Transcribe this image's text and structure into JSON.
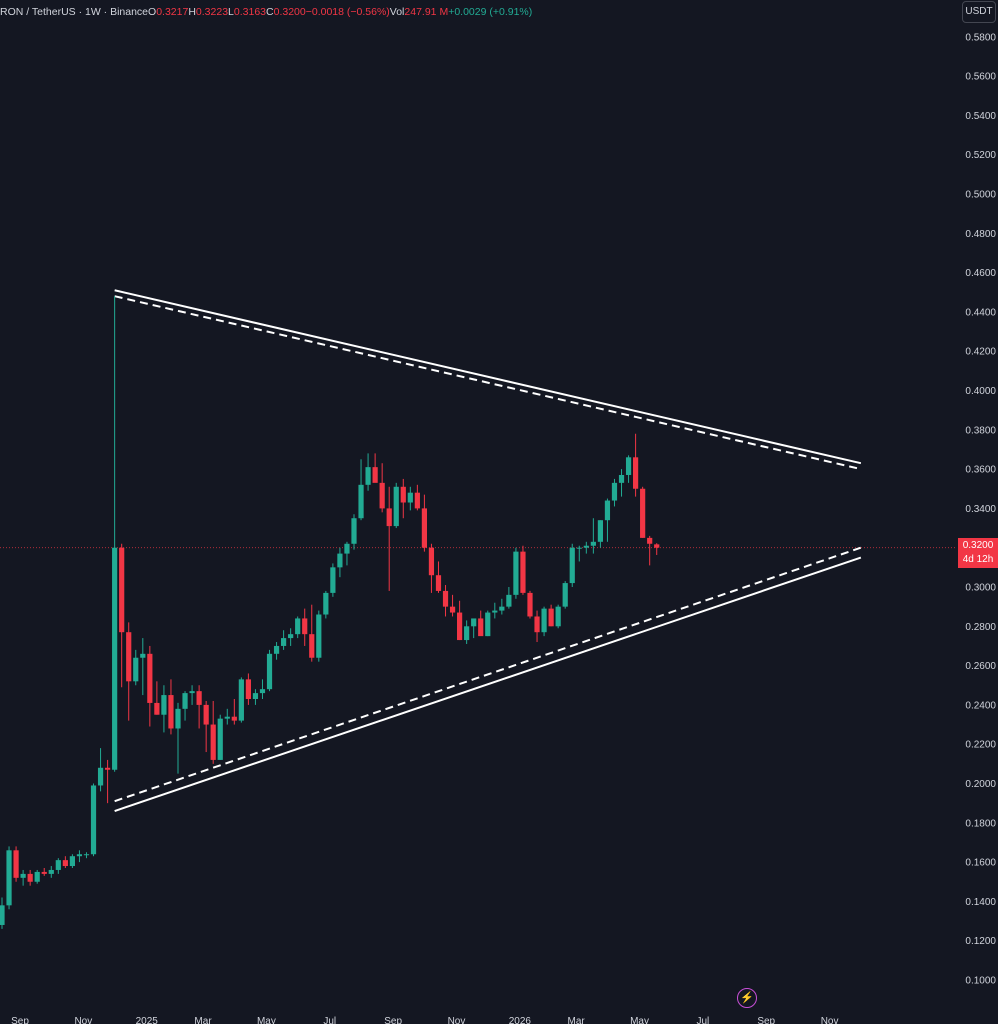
{
  "header": {
    "symbol": "RON / TetherUS · 1W · Binance",
    "o_label": "O",
    "o_value": "0.3217",
    "h_label": "H",
    "h_value": "0.3223",
    "l_label": "L",
    "l_value": "0.3163",
    "c_label": "C",
    "c_value": "0.3200",
    "change": "−0.0018 (−0.56%)",
    "vol_label": "Vol",
    "vol_value": "247.91 M",
    "vol_change": "+0.0029 (+0.91%)",
    "currency": "USDT"
  },
  "price_tag": {
    "price": "0.3200",
    "countdown": "4d 12h"
  },
  "colors": {
    "background": "#141722",
    "up": "#22ab94",
    "down": "#f23645",
    "text": "#d1d4dc",
    "trendline": "#ffffff"
  },
  "icons": {
    "bottom": "bolt-icon"
  },
  "chart_data": {
    "type": "candlestick",
    "title": "",
    "xlabel": "",
    "ylabel": "",
    "ylim": [
      0.095,
      0.59
    ],
    "grid": false,
    "y_ticks": [
      "0.1000",
      "0.1200",
      "0.1400",
      "0.1600",
      "0.1800",
      "0.2000",
      "0.2200",
      "0.2400",
      "0.2600",
      "0.2800",
      "0.3000",
      "0.3200",
      "0.3400",
      "0.3600",
      "0.3800",
      "0.4000",
      "0.4200",
      "0.4400",
      "0.4600",
      "0.4800",
      "0.5000",
      "0.5200",
      "0.5400",
      "0.5600",
      "0.5800"
    ],
    "x_ticks": [
      {
        "label": "Sep",
        "week": 0
      },
      {
        "label": "Nov",
        "week": 9
      },
      {
        "label": "2025",
        "week": 18
      },
      {
        "label": "Mar",
        "week": 26
      },
      {
        "label": "May",
        "week": 35
      },
      {
        "label": "Jul",
        "week": 44
      },
      {
        "label": "Sep",
        "week": 53
      },
      {
        "label": "Nov",
        "week": 62
      },
      {
        "label": "2026",
        "week": 71
      },
      {
        "label": "Mar",
        "week": 79
      },
      {
        "label": "May",
        "week": 88
      },
      {
        "label": "Jul",
        "week": 97
      },
      {
        "label": "Sep",
        "week": 106
      },
      {
        "label": "Nov",
        "week": 115
      }
    ],
    "candles": [
      [
        0.128,
        0.142,
        0.126,
        0.138
      ],
      [
        0.138,
        0.168,
        0.136,
        0.166
      ],
      [
        0.166,
        0.168,
        0.15,
        0.152
      ],
      [
        0.152,
        0.156,
        0.148,
        0.154
      ],
      [
        0.154,
        0.156,
        0.148,
        0.15
      ],
      [
        0.15,
        0.156,
        0.149,
        0.155
      ],
      [
        0.155,
        0.157,
        0.153,
        0.154
      ],
      [
        0.154,
        0.158,
        0.152,
        0.156
      ],
      [
        0.156,
        0.162,
        0.154,
        0.161
      ],
      [
        0.161,
        0.163,
        0.157,
        0.158
      ],
      [
        0.158,
        0.164,
        0.157,
        0.163
      ],
      [
        0.163,
        0.166,
        0.16,
        0.164
      ],
      [
        0.164,
        0.165,
        0.162,
        0.164
      ],
      [
        0.164,
        0.2,
        0.163,
        0.199
      ],
      [
        0.199,
        0.218,
        0.196,
        0.208
      ],
      [
        0.208,
        0.212,
        0.19,
        0.207
      ],
      [
        0.207,
        0.448,
        0.206,
        0.32
      ],
      [
        0.32,
        0.322,
        0.249,
        0.277
      ],
      [
        0.277,
        0.282,
        0.232,
        0.252
      ],
      [
        0.252,
        0.268,
        0.25,
        0.264
      ],
      [
        0.264,
        0.274,
        0.245,
        0.266
      ],
      [
        0.266,
        0.27,
        0.229,
        0.241
      ],
      [
        0.241,
        0.252,
        0.235,
        0.235
      ],
      [
        0.235,
        0.25,
        0.226,
        0.245
      ],
      [
        0.245,
        0.253,
        0.225,
        0.228
      ],
      [
        0.228,
        0.241,
        0.205,
        0.238
      ],
      [
        0.238,
        0.247,
        0.232,
        0.246
      ],
      [
        0.246,
        0.25,
        0.24,
        0.247
      ],
      [
        0.247,
        0.25,
        0.228,
        0.24
      ],
      [
        0.24,
        0.242,
        0.216,
        0.23
      ],
      [
        0.23,
        0.242,
        0.21,
        0.212
      ],
      [
        0.212,
        0.235,
        0.212,
        0.233
      ],
      [
        0.233,
        0.238,
        0.23,
        0.234
      ],
      [
        0.234,
        0.243,
        0.23,
        0.232
      ],
      [
        0.232,
        0.254,
        0.231,
        0.253
      ],
      [
        0.253,
        0.256,
        0.24,
        0.243
      ],
      [
        0.243,
        0.248,
        0.24,
        0.246
      ],
      [
        0.246,
        0.253,
        0.243,
        0.248
      ],
      [
        0.248,
        0.268,
        0.247,
        0.266
      ],
      [
        0.266,
        0.272,
        0.263,
        0.27
      ],
      [
        0.27,
        0.278,
        0.268,
        0.274
      ],
      [
        0.274,
        0.279,
        0.27,
        0.276
      ],
      [
        0.276,
        0.285,
        0.274,
        0.284
      ],
      [
        0.284,
        0.289,
        0.27,
        0.276
      ],
      [
        0.276,
        0.291,
        0.262,
        0.264
      ],
      [
        0.264,
        0.288,
        0.262,
        0.286
      ],
      [
        0.286,
        0.298,
        0.284,
        0.297
      ],
      [
        0.297,
        0.312,
        0.295,
        0.31
      ],
      [
        0.31,
        0.32,
        0.305,
        0.317
      ],
      [
        0.317,
        0.323,
        0.311,
        0.322
      ],
      [
        0.322,
        0.337,
        0.319,
        0.335
      ],
      [
        0.335,
        0.365,
        0.334,
        0.352
      ],
      [
        0.352,
        0.368,
        0.349,
        0.361
      ],
      [
        0.361,
        0.368,
        0.354,
        0.353
      ],
      [
        0.353,
        0.363,
        0.338,
        0.34
      ],
      [
        0.34,
        0.351,
        0.298,
        0.331
      ],
      [
        0.331,
        0.353,
        0.33,
        0.351
      ],
      [
        0.351,
        0.355,
        0.335,
        0.343
      ],
      [
        0.343,
        0.351,
        0.339,
        0.348
      ],
      [
        0.348,
        0.352,
        0.339,
        0.34
      ],
      [
        0.34,
        0.347,
        0.318,
        0.32
      ],
      [
        0.32,
        0.322,
        0.297,
        0.306
      ],
      [
        0.306,
        0.313,
        0.297,
        0.298
      ],
      [
        0.298,
        0.301,
        0.285,
        0.29
      ],
      [
        0.29,
        0.296,
        0.285,
        0.287
      ],
      [
        0.287,
        0.293,
        0.273,
        0.273
      ],
      [
        0.273,
        0.283,
        0.271,
        0.28
      ],
      [
        0.28,
        0.282,
        0.274,
        0.284
      ],
      [
        0.284,
        0.288,
        0.276,
        0.275
      ],
      [
        0.275,
        0.288,
        0.275,
        0.287
      ],
      [
        0.287,
        0.292,
        0.284,
        0.288
      ],
      [
        0.288,
        0.294,
        0.286,
        0.29
      ],
      [
        0.29,
        0.3,
        0.289,
        0.296
      ],
      [
        0.296,
        0.32,
        0.294,
        0.318
      ],
      [
        0.318,
        0.321,
        0.296,
        0.297
      ],
      [
        0.297,
        0.298,
        0.284,
        0.285
      ],
      [
        0.285,
        0.288,
        0.272,
        0.277
      ],
      [
        0.277,
        0.29,
        0.275,
        0.289
      ],
      [
        0.289,
        0.291,
        0.28,
        0.28
      ],
      [
        0.28,
        0.291,
        0.279,
        0.29
      ],
      [
        0.29,
        0.303,
        0.289,
        0.302
      ],
      [
        0.302,
        0.322,
        0.3,
        0.32
      ],
      [
        0.32,
        0.321,
        0.313,
        0.32
      ],
      [
        0.32,
        0.323,
        0.317,
        0.321
      ],
      [
        0.321,
        0.335,
        0.317,
        0.323
      ],
      [
        0.323,
        0.334,
        0.32,
        0.334
      ],
      [
        0.334,
        0.345,
        0.323,
        0.344
      ],
      [
        0.344,
        0.355,
        0.341,
        0.353
      ],
      [
        0.353,
        0.36,
        0.346,
        0.357
      ],
      [
        0.357,
        0.367,
        0.353,
        0.366
      ],
      [
        0.366,
        0.378,
        0.346,
        0.35
      ],
      [
        0.35,
        0.351,
        0.325,
        0.325
      ],
      [
        0.325,
        0.326,
        0.311,
        0.322
      ],
      [
        0.3217,
        0.3223,
        0.3163,
        0.32
      ]
    ],
    "trendlines": [
      {
        "style": "solid",
        "start": [
          16,
          0.451
        ],
        "end": [
          122,
          0.363
        ]
      },
      {
        "style": "dashed",
        "start": [
          16,
          0.448
        ],
        "end": [
          122,
          0.36
        ]
      },
      {
        "style": "solid",
        "start": [
          16,
          0.186
        ],
        "end": [
          122,
          0.315
        ]
      },
      {
        "style": "dashed",
        "start": [
          16,
          0.191
        ],
        "end": [
          122,
          0.32
        ]
      }
    ],
    "current_price": 0.32
  }
}
